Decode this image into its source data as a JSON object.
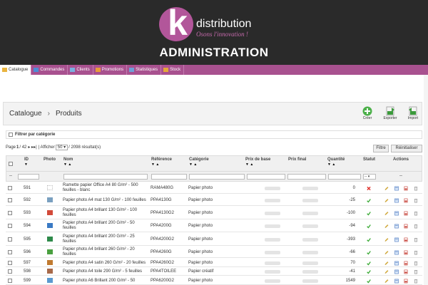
{
  "brand": {
    "logo_letter": "k",
    "name": "distribution",
    "tagline": "Osons l'innovation !",
    "admin_title": "ADMINISTRATION",
    "logo_color": "#b2569a"
  },
  "nav": {
    "items": [
      {
        "label": "Catalogue",
        "icon": "folder-icon",
        "active": true
      },
      {
        "label": "Commandes",
        "icon": "cart-icon",
        "active": false
      },
      {
        "label": "Clients",
        "icon": "users-icon",
        "active": false
      },
      {
        "label": "Promotions",
        "icon": "promo-icon",
        "active": false
      },
      {
        "label": "Statistiques",
        "icon": "stats-icon",
        "active": false
      },
      {
        "label": "Stock",
        "icon": "stock-icon",
        "active": false
      }
    ]
  },
  "breadcrumb": {
    "first": "Catalogue",
    "second": "Produits"
  },
  "toolbar": {
    "create": "Créer",
    "export": "Exporter",
    "import": "Import"
  },
  "filter_category": "Filtrer par catégorie",
  "pager": {
    "page_label": "Page",
    "page": "1",
    "total_pages": "/ 42",
    "display_label": "| Afficher",
    "per_page": "50",
    "results": "/ 2098 résultat(s)"
  },
  "buttons": {
    "filter": "Filtre",
    "reset": "Réinitialiser"
  },
  "table": {
    "headers": {
      "id": "ID",
      "photo": "Photo",
      "name": "Nom",
      "reference": "Référence",
      "category": "Catégorie",
      "base_price": "Prix de base",
      "final_price": "Prix final",
      "quantity": "Quantité",
      "status": "Statut",
      "actions": "Actions"
    },
    "filter_placeholder": "--",
    "status_filter": "--",
    "rows": [
      {
        "id": "591",
        "name_1": "Ramette papier Office A4 80 G/m² - 500",
        "name_2": "feuilles - blanc",
        "reference": "RAMA480G",
        "category": "Papier photo",
        "quantity": "0",
        "status": "disabled"
      },
      {
        "id": "592",
        "name_1": "Papier photo A4 mat 130 G/m² - 100 feuilles",
        "name_2": "",
        "reference": "PPA4130G",
        "category": "Papier photo",
        "quantity": "-25",
        "status": "enabled"
      },
      {
        "id": "593",
        "name_1": "Papier photo A4 brillant 130 G/m² - 100",
        "name_2": "feuilles",
        "reference": "PPA4130G2",
        "category": "Papier photo",
        "quantity": "-100",
        "status": "enabled"
      },
      {
        "id": "594",
        "name_1": "Papier photo A4 brillant 200 G/m² - 50",
        "name_2": "feuilles",
        "reference": "PPA4200G",
        "category": "Papier photo",
        "quantity": "-94",
        "status": "enabled"
      },
      {
        "id": "595",
        "name_1": "Papier photo A4 brillant 200 G/m² - 25",
        "name_2": "feuilles",
        "reference": "PPA4200G2",
        "category": "Papier photo",
        "quantity": "-393",
        "status": "enabled"
      },
      {
        "id": "596",
        "name_1": "Papier photo A4 brillant 260 G/m² - 20",
        "name_2": "feuilles",
        "reference": "PPA4260G",
        "category": "Papier photo",
        "quantity": "-66",
        "status": "enabled"
      },
      {
        "id": "597",
        "name_1": "Papier photo A4 satin 260 G/m² - 20 feuilles",
        "name_2": "",
        "reference": "PPA4260G2",
        "category": "Papier photo",
        "quantity": "70",
        "status": "enabled"
      },
      {
        "id": "598",
        "name_1": "Papier photo A4 toile 290 G/m² - 5 feuilles",
        "name_2": "",
        "reference": "PPA4TOILEE",
        "category": "Papier créatif",
        "quantity": "-41",
        "status": "enabled"
      },
      {
        "id": "599",
        "name_1": "Papier photo A6 Brillant 200 G/m² - 50",
        "name_2": "",
        "reference": "PPA6200G2",
        "category": "Papier photo",
        "quantity": "1549",
        "status": "enabled"
      }
    ]
  },
  "colors": {
    "header_bg": "#2a2a2a",
    "nav_bg": "#a8518f",
    "enabled": "#3aaa35",
    "disabled": "#e0302a"
  }
}
